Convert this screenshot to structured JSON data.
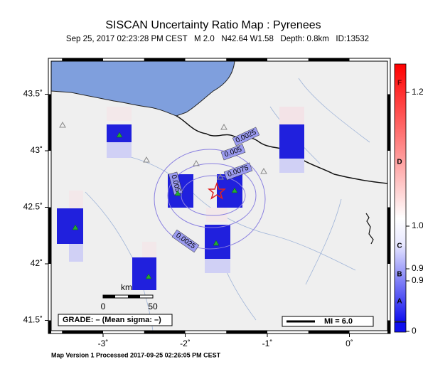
{
  "header": {
    "title": "SISCAN Uncertainty Ratio Map : Pyrenees",
    "subtitle": "Sep 25, 2017 02:23:28 PM CEST   M 2.0   N42.64 W1.58   Depth: 0.8km   ID:13532"
  },
  "axes": {
    "lon": [
      {
        "value": -3,
        "label": "-3˚"
      },
      {
        "value": -2,
        "label": "-2˚"
      },
      {
        "value": -1,
        "label": "-1˚"
      },
      {
        "value": 0,
        "label": "0˚"
      }
    ],
    "lat": [
      {
        "value": 43.5,
        "label": "43.5˚"
      },
      {
        "value": 43,
        "label": "43˚"
      },
      {
        "value": 42.5,
        "label": "42.5˚"
      },
      {
        "value": 42,
        "label": "42˚"
      },
      {
        "value": 41.5,
        "label": "41.5˚"
      }
    ]
  },
  "contours": [
    "0.0025",
    "0.005",
    "0.0075",
    "0.005",
    "0.0025"
  ],
  "scale_bar": {
    "unit": "km",
    "labels": [
      "0",
      "50"
    ]
  },
  "legend": {
    "grade": "GRADE: – (Mean sigma: –)",
    "mi": "MI = 6.0"
  },
  "colorbar": {
    "letters": [
      "F",
      "D",
      "C",
      "B",
      "A"
    ],
    "values": [
      "1.2",
      "1.0",
      "0.9",
      "0.9",
      "0"
    ]
  },
  "footer": "Map Version 1 Processed 2017-09-25 02:26:05 PM CEST"
}
